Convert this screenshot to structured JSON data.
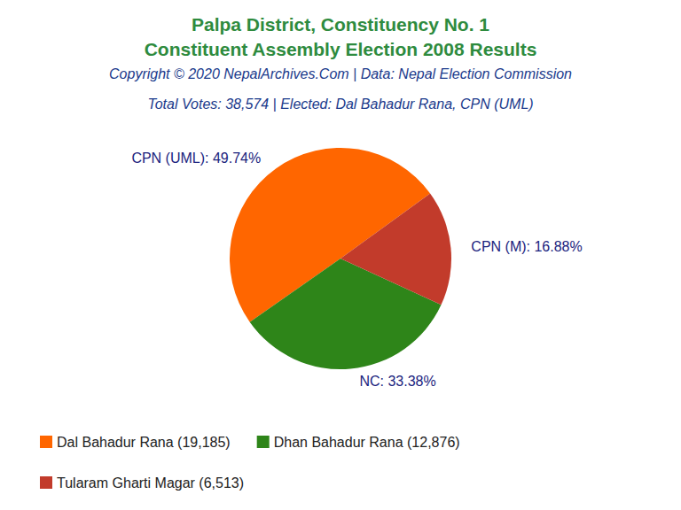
{
  "chart_data": {
    "type": "pie",
    "title": [
      "Palpa District, Constituency No. 1",
      "Constituent Assembly Election 2008 Results"
    ],
    "subtitle": [
      "Copyright © 2020 NepalArchives.Com | Data: Nepal Election Commission",
      "Total Votes: 38,574 | Elected: Dal Bahadur Rana, CPN (UML)"
    ],
    "categories": [
      "CPN (UML)",
      "NC",
      "CPN (M)"
    ],
    "values": [
      49.74,
      33.38,
      16.88
    ],
    "value_labels": [
      "CPN (UML): 49.74%",
      "NC: 33.38%",
      "CPN (M): 16.88%"
    ],
    "legend_labels": [
      "Dal Bahadur Rana (19,185)",
      "Dhan Bahadur Rana (12,876)",
      "Tularam Gharti Magar (6,513)"
    ],
    "colors": [
      "#ff6600",
      "#2e8519",
      "#c23b2b"
    ],
    "legend": "bottom-left",
    "data_labels": true
  }
}
